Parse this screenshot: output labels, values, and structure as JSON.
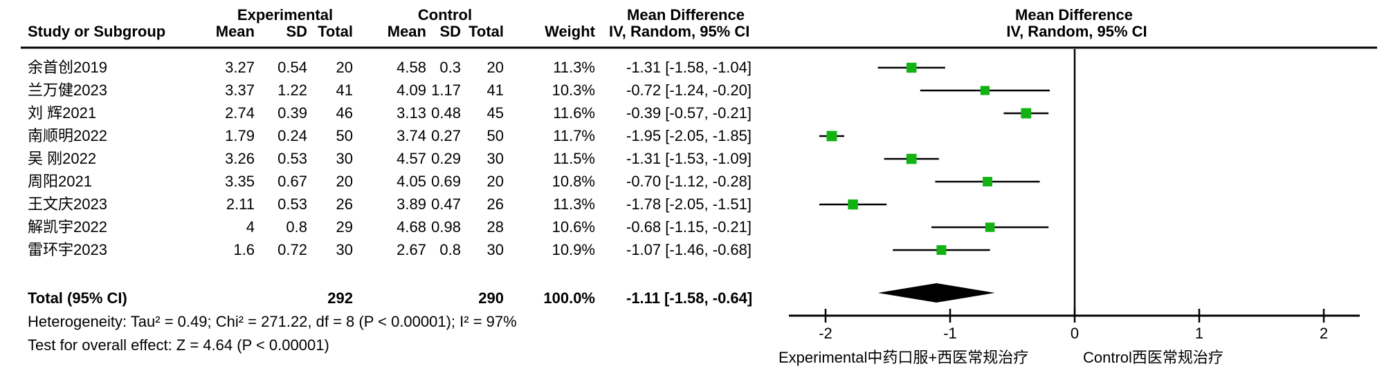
{
  "colors": {
    "background": "#ffffff",
    "text": "#000000",
    "line": "#000000",
    "marker_green": "#12b212",
    "diamond": "#000000"
  },
  "header": {
    "experimental_group": "Experimental",
    "control_group": "Control",
    "mean_difference_table": "Mean Difference",
    "mean_difference_plot": "Mean Difference",
    "study": "Study or Subgroup",
    "exp_mean": "Mean",
    "exp_sd": "SD",
    "exp_total": "Total",
    "ctrl_mean": "Mean",
    "ctrl_sd": "SD",
    "ctrl_total": "Total",
    "weight": "Weight",
    "ci_method_table": "IV, Random, 95% CI",
    "ci_method_plot": "IV, Random, 95% CI"
  },
  "rows": [
    {
      "study": "余首创2019",
      "exp_mean": "3.27",
      "exp_sd": "0.54",
      "exp_total": "20",
      "ctrl_mean": "4.58",
      "ctrl_sd": "0.3",
      "ctrl_total": "20",
      "weight": "11.3%",
      "ci": "-1.31 [-1.58, -1.04]"
    },
    {
      "study": "兰万健2023",
      "exp_mean": "3.37",
      "exp_sd": "1.22",
      "exp_total": "41",
      "ctrl_mean": "4.09",
      "ctrl_sd": "1.17",
      "ctrl_total": "41",
      "weight": "10.3%",
      "ci": "-0.72 [-1.24, -0.20]"
    },
    {
      "study": "刘 辉2021",
      "exp_mean": "2.74",
      "exp_sd": "0.39",
      "exp_total": "46",
      "ctrl_mean": "3.13",
      "ctrl_sd": "0.48",
      "ctrl_total": "45",
      "weight": "11.6%",
      "ci": "-0.39 [-0.57, -0.21]"
    },
    {
      "study": "南顺明2022",
      "exp_mean": "1.79",
      "exp_sd": "0.24",
      "exp_total": "50",
      "ctrl_mean": "3.74",
      "ctrl_sd": "0.27",
      "ctrl_total": "50",
      "weight": "11.7%",
      "ci": "-1.95 [-2.05, -1.85]"
    },
    {
      "study": "吴 刚2022",
      "exp_mean": "3.26",
      "exp_sd": "0.53",
      "exp_total": "30",
      "ctrl_mean": "4.57",
      "ctrl_sd": "0.29",
      "ctrl_total": "30",
      "weight": "11.5%",
      "ci": "-1.31 [-1.53, -1.09]"
    },
    {
      "study": "周阳2021",
      "exp_mean": "3.35",
      "exp_sd": "0.67",
      "exp_total": "20",
      "ctrl_mean": "4.05",
      "ctrl_sd": "0.69",
      "ctrl_total": "20",
      "weight": "10.8%",
      "ci": "-0.70 [-1.12, -0.28]"
    },
    {
      "study": "王文庆2023",
      "exp_mean": "2.11",
      "exp_sd": "0.53",
      "exp_total": "26",
      "ctrl_mean": "3.89",
      "ctrl_sd": "0.47",
      "ctrl_total": "26",
      "weight": "11.3%",
      "ci": "-1.78 [-2.05, -1.51]"
    },
    {
      "study": "解凯宇2022",
      "exp_mean": "4",
      "exp_sd": "0.8",
      "exp_total": "29",
      "ctrl_mean": "4.68",
      "ctrl_sd": "0.98",
      "ctrl_total": "28",
      "weight": "10.6%",
      "ci": "-0.68 [-1.15, -0.21]"
    },
    {
      "study": "雷环宇2023",
      "exp_mean": "1.6",
      "exp_sd": "0.72",
      "exp_total": "30",
      "ctrl_mean": "2.67",
      "ctrl_sd": "0.8",
      "ctrl_total": "30",
      "weight": "10.9%",
      "ci": "-1.07 [-1.46, -0.68]"
    }
  ],
  "total_row": {
    "label": "Total (95% CI)",
    "exp_total": "292",
    "ctrl_total": "290",
    "weight": "100.0%",
    "ci": "-1.11 [-1.58, -0.64]"
  },
  "footnotes": {
    "heterogeneity": "Heterogeneity: Tau² = 0.49; Chi² = 271.22, df = 8 (P < 0.00001); I² = 97%",
    "overall_effect": "Test for overall effect: Z = 4.64 (P < 0.00001)"
  },
  "chart_data": {
    "type": "forest",
    "title": "Mean Difference",
    "effect_measure": "IV, Random, 95% CI",
    "model": "Random effects",
    "xlim": [
      -2.29,
      2.29
    ],
    "xticks": [
      -2,
      -1,
      0,
      1,
      2
    ],
    "grid": false,
    "legend_position": "none",
    "studies": [
      {
        "name": "余首创2019",
        "md": -1.31,
        "ci": [
          -1.58,
          -1.04
        ],
        "weight_pct": 11.3
      },
      {
        "name": "兰万健2023",
        "md": -0.72,
        "ci": [
          -1.24,
          -0.2
        ],
        "weight_pct": 10.3
      },
      {
        "name": "刘 辉2021",
        "md": -0.39,
        "ci": [
          -0.57,
          -0.21
        ],
        "weight_pct": 11.6
      },
      {
        "name": "南顺明2022",
        "md": -1.95,
        "ci": [
          -2.05,
          -1.85
        ],
        "weight_pct": 11.7
      },
      {
        "name": "吴 刚2022",
        "md": -1.31,
        "ci": [
          -1.53,
          -1.09
        ],
        "weight_pct": 11.5
      },
      {
        "name": "周阳2021",
        "md": -0.7,
        "ci": [
          -1.12,
          -0.28
        ],
        "weight_pct": 10.8
      },
      {
        "name": "王文庆2023",
        "md": -1.78,
        "ci": [
          -2.05,
          -1.51
        ],
        "weight_pct": 11.3
      },
      {
        "name": "解凯宇2022",
        "md": -0.68,
        "ci": [
          -1.15,
          -0.21
        ],
        "weight_pct": 10.6
      },
      {
        "name": "雷环宇2023",
        "md": -1.07,
        "ci": [
          -1.46,
          -0.68
        ],
        "weight_pct": 10.9
      }
    ],
    "total": {
      "md": -1.11,
      "ci": [
        -1.58,
        -0.64
      ]
    },
    "footer_labels": {
      "left": "Experimental中药口服+西医常规治疗",
      "right": "Control西医常规治疗"
    }
  }
}
